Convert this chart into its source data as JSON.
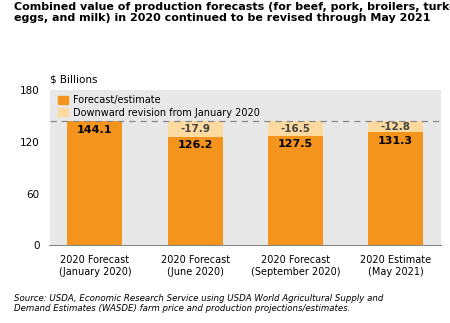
{
  "title_line1": "Combined value of production forecasts (for beef, pork, broilers, turkeys,",
  "title_line2": "eggs, and milk) in 2020 continued to be revised through May 2021",
  "ylabel": "$ Billions",
  "categories": [
    "2020 Forecast\n(January 2020)",
    "2020 Forecast\n(June 2020)",
    "2020 Forecast\n(September 2020)",
    "2020 Estimate\n(May 2021)"
  ],
  "forecast_values": [
    144.1,
    126.2,
    127.5,
    131.3
  ],
  "revision_values": [
    0,
    17.9,
    16.5,
    12.8
  ],
  "revision_labels": [
    "",
    "-17.9",
    "-16.5",
    "-12.8"
  ],
  "forecast_labels": [
    "144.1",
    "126.2",
    "127.5",
    "131.3"
  ],
  "forecast_color": "#F5941D",
  "revision_color": "#FDDAA0",
  "dashed_line_y": 144.1,
  "ylim": [
    0,
    180
  ],
  "yticks": [
    0,
    60,
    120,
    180
  ],
  "background_color": "#E8E8E8",
  "legend_forecast": "Forecast/estimate",
  "legend_revision": "Downward revision from January 2020",
  "source_normal": "Source: USDA, Economic Research Service using USDA ",
  "source_italic": "World Agricultural Supply and\nDemand Estimates (WASDE)",
  "source_normal2": " farm price and production projections/estimates."
}
